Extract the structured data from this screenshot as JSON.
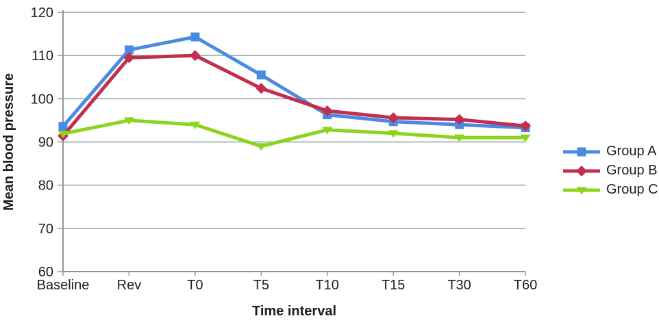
{
  "chart_data": {
    "type": "line",
    "title": "",
    "xlabel": "Time interval",
    "ylabel": "Mean blood pressure",
    "categories": [
      "Baseline",
      "Rev",
      "T0",
      "T5",
      "T10",
      "T15",
      "T30",
      "T60"
    ],
    "series": [
      {
        "name": "Group A",
        "color": "#4a8ae0",
        "marker": "square",
        "values": [
          93.6,
          111.3,
          114.3,
          105.5,
          96.3,
          94.7,
          94.0,
          93.3
        ]
      },
      {
        "name": "Group B",
        "color": "#c22e4d",
        "marker": "diamond",
        "values": [
          91.4,
          109.5,
          110.0,
          102.4,
          97.2,
          95.6,
          95.2,
          93.7
        ]
      },
      {
        "name": "Group C",
        "color": "#8cd41e",
        "marker": "triangle-down",
        "values": [
          91.9,
          95.0,
          94.0,
          89.0,
          92.8,
          92.0,
          91.0,
          91.0
        ]
      }
    ],
    "ylim": [
      60,
      120
    ],
    "yticks": [
      60,
      70,
      80,
      90,
      100,
      110,
      120
    ],
    "grid": "horizontal-only",
    "legend_position": "right"
  },
  "styles": {
    "grid_color": "#95a2a4",
    "axis_color": "#8a9799",
    "text_color": "#1d1d1b",
    "background": "#ffffff",
    "line_width": 5
  }
}
